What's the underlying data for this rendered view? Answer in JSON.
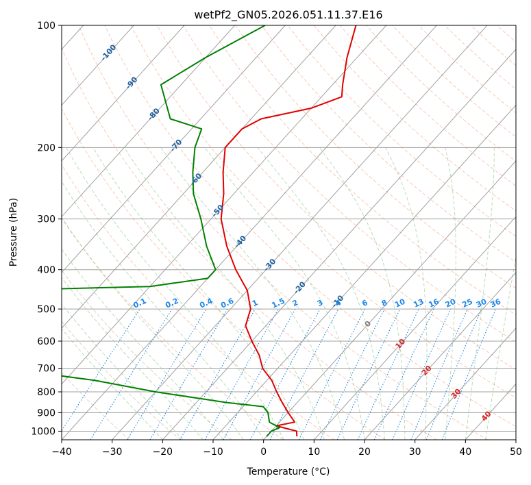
{
  "chart_data": {
    "type": "line",
    "title": "wetPf2_GN05.2026.051.11.37.E16",
    "xlabel": "Temperature (°C)",
    "ylabel": "Pressure (hPa)",
    "xlim": [
      -40,
      50
    ],
    "ylim": [
      1050,
      100
    ],
    "y_scale": "log",
    "x_ticks": [
      "−40",
      "−30",
      "−20",
      "−10",
      "0",
      "10",
      "20",
      "30",
      "40",
      "50"
    ],
    "y_ticks": [
      "100",
      "200",
      "300",
      "400",
      "500",
      "600",
      "700",
      "800",
      "900",
      "1000"
    ],
    "grid": true,
    "series": [
      {
        "color": "#e00000",
        "points": [
          [
            -56,
            100
          ],
          [
            -52,
            120
          ],
          [
            -48,
            140
          ],
          [
            -46,
            150
          ],
          [
            -50,
            160
          ],
          [
            -58,
            170
          ],
          [
            -60,
            180
          ],
          [
            -60,
            200
          ],
          [
            -56,
            230
          ],
          [
            -52,
            260
          ],
          [
            -48,
            300
          ],
          [
            -42,
            350
          ],
          [
            -36,
            400
          ],
          [
            -30,
            450
          ],
          [
            -26,
            500
          ],
          [
            -24,
            550
          ],
          [
            -20,
            600
          ],
          [
            -16,
            650
          ],
          [
            -13,
            700
          ],
          [
            -9,
            750
          ],
          [
            -6,
            800
          ],
          [
            -3,
            850
          ],
          [
            0,
            900
          ],
          [
            3,
            950
          ],
          [
            0,
            970
          ],
          [
            5,
            1000
          ],
          [
            6,
            1030
          ]
        ]
      },
      {
        "color": "#008000",
        "points": [
          [
            -74,
            100
          ],
          [
            -80,
            120
          ],
          [
            -84,
            140
          ],
          [
            -76,
            170
          ],
          [
            -68,
            180
          ],
          [
            -66,
            200
          ],
          [
            -62,
            230
          ],
          [
            -58,
            260
          ],
          [
            -52,
            300
          ],
          [
            -46,
            350
          ],
          [
            -40,
            400
          ],
          [
            -40,
            420
          ],
          [
            -50,
            440
          ],
          [
            -110,
            460
          ],
          [
            -120,
            500
          ],
          [
            -116,
            540
          ],
          [
            -108,
            550
          ],
          [
            -90,
            560
          ],
          [
            -72,
            580
          ],
          [
            -64,
            600
          ],
          [
            -68,
            620
          ],
          [
            -74,
            640
          ],
          [
            -74,
            660
          ],
          [
            -64,
            700
          ],
          [
            -44,
            750
          ],
          [
            -30,
            800
          ],
          [
            -14,
            850
          ],
          [
            -6,
            870
          ],
          [
            -4,
            900
          ],
          [
            -2,
            950
          ],
          [
            1,
            980
          ],
          [
            0,
            1000
          ],
          [
            0,
            1030
          ]
        ]
      }
    ],
    "isotherm_labels": [
      "-100",
      "-90",
      "-80",
      "-70",
      "-60",
      "-50",
      "-40",
      "-30",
      "-20",
      "-10",
      "0",
      "10",
      "20",
      "30",
      "40"
    ],
    "isotherm_label_values": [
      -100,
      -90,
      -80,
      -70,
      -60,
      -50,
      -40,
      -30,
      -20,
      -10,
      0,
      10,
      20,
      30,
      40
    ],
    "mixing_ratio_labels": [
      "0.1",
      "0.2",
      "0.4",
      "0.6",
      "1",
      "1.5",
      "2",
      "3",
      "4",
      "6",
      "8",
      "10",
      "13",
      "16",
      "20",
      "25",
      "30",
      "36"
    ],
    "mixing_ratio_values": [
      0.1,
      0.2,
      0.4,
      0.6,
      1,
      1.5,
      2,
      3,
      4,
      6,
      8,
      10,
      13,
      16,
      20,
      25,
      30,
      36
    ],
    "colors": {
      "temperature": "#e00000",
      "dewpoint": "#008000",
      "isotherm_cold_label": "#1f5f9f",
      "isotherm_zero_label": "#808080",
      "isotherm_warm_label": "#d62728",
      "mixing_ratio": "#1e88e5",
      "dry_adiabat": "#f4a582",
      "moist_adiabat": "#7fbf7f",
      "isotherm": "#a0a0a0",
      "isobar": "#a0a0a0",
      "dry_adiabat_cold": "#c8b496"
    }
  }
}
